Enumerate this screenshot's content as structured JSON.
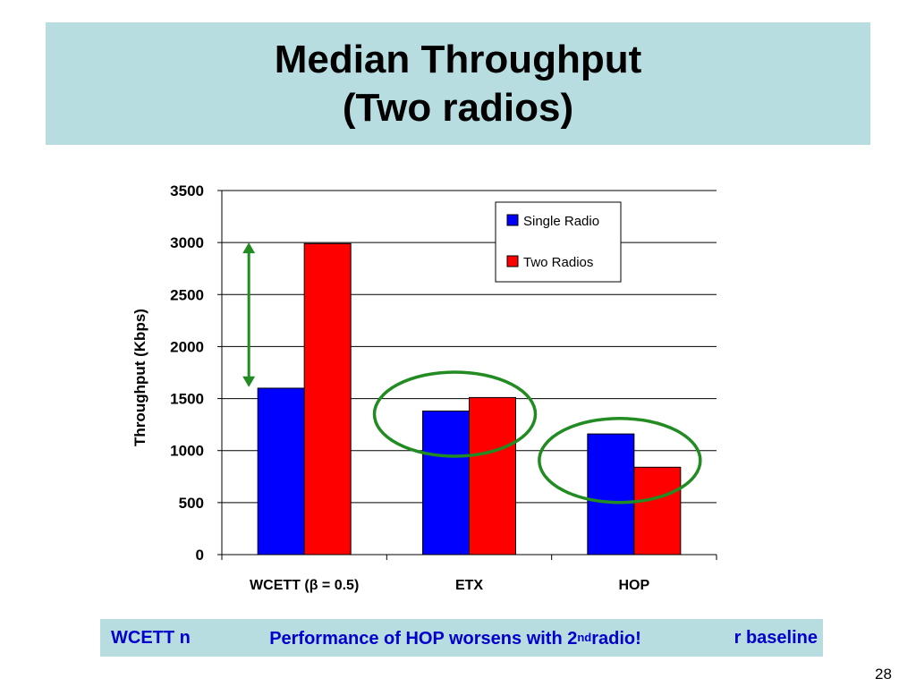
{
  "slide": {
    "title_line1": "Median Throughput",
    "title_line2": "(Two radios)",
    "page_number": "28"
  },
  "caption": {
    "back_left": "WCETT n",
    "back_right": "r baseline",
    "front_before_sup": "Performance of HOP worsens with 2",
    "front_sup": "nd",
    "front_after_sup": " radio!"
  },
  "colors": {
    "title_band": "#b7dde1",
    "single_radio": "#0000ff",
    "two_radios": "#ff0000",
    "annotation_green": "#228b22",
    "caption_text": "#0000cc"
  },
  "chart_data": {
    "type": "bar",
    "title": "",
    "xlabel": "",
    "ylabel": "Throughput (Kbps)",
    "ylim": [
      0,
      3500
    ],
    "yticks": [
      "0",
      "500",
      "1000",
      "1500",
      "2000",
      "2500",
      "3000",
      "3500"
    ],
    "grid": true,
    "legend_position": "top-right",
    "categories": [
      "WCETT (β = 0.5)",
      "ETX",
      "HOP"
    ],
    "series": [
      {
        "name": "Single Radio",
        "values": [
          1600,
          1380,
          1160
        ]
      },
      {
        "name": "Two Radios",
        "values": [
          2990,
          1510,
          840
        ]
      }
    ],
    "annotations": [
      {
        "type": "double-arrow",
        "category": "WCETT (β = 0.5)",
        "from": 1610,
        "to": 3000
      },
      {
        "type": "ellipse",
        "category": "ETX"
      },
      {
        "type": "ellipse",
        "category": "HOP"
      }
    ]
  }
}
